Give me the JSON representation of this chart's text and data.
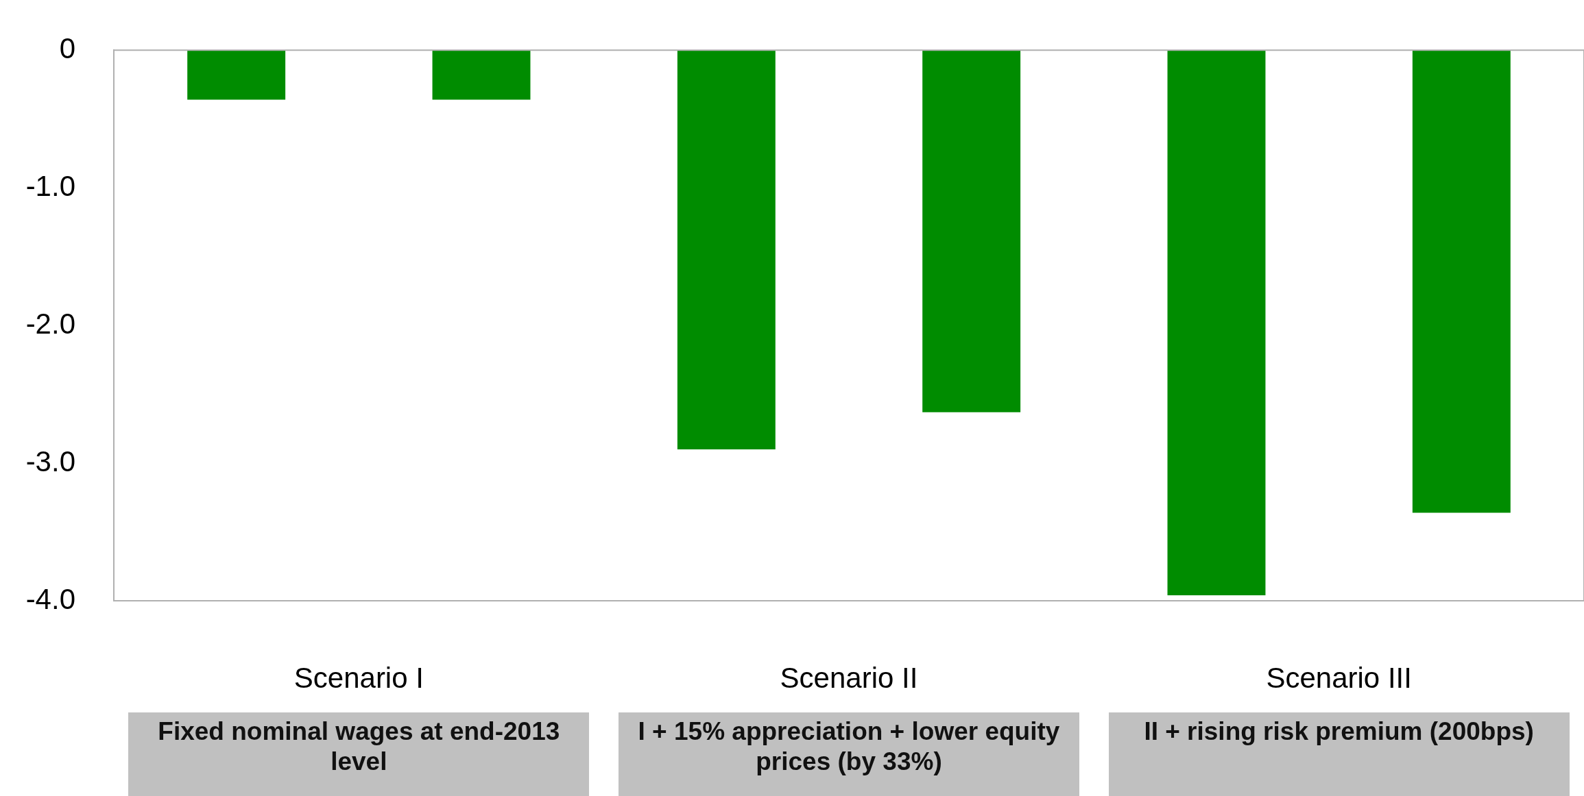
{
  "chart_data": {
    "type": "bar",
    "categories": [
      "Scenario I",
      "Scenario II",
      "Scenario III"
    ],
    "series": [
      {
        "color": "#008c00",
        "values": [
          -0.36,
          -2.9,
          -3.96
        ]
      },
      {
        "color": "#008c00",
        "values": [
          -0.36,
          -2.63,
          -3.36
        ]
      }
    ],
    "ylim": [
      -4,
      0
    ],
    "yticks": [
      {
        "value": 0,
        "label": "0"
      },
      {
        "value": -1,
        "label": "-1.0"
      },
      {
        "value": -2,
        "label": "-2.0"
      },
      {
        "value": -3,
        "label": "-3.0"
      },
      {
        "value": -4,
        "label": "-4.0"
      }
    ],
    "grid": false,
    "legend": false,
    "annotations": [
      "Fixed nominal wages at end-2013 level",
      "I + 15% appreciation + lower equity prices (by 33%)",
      "II + rising risk premium (200bps)"
    ]
  }
}
